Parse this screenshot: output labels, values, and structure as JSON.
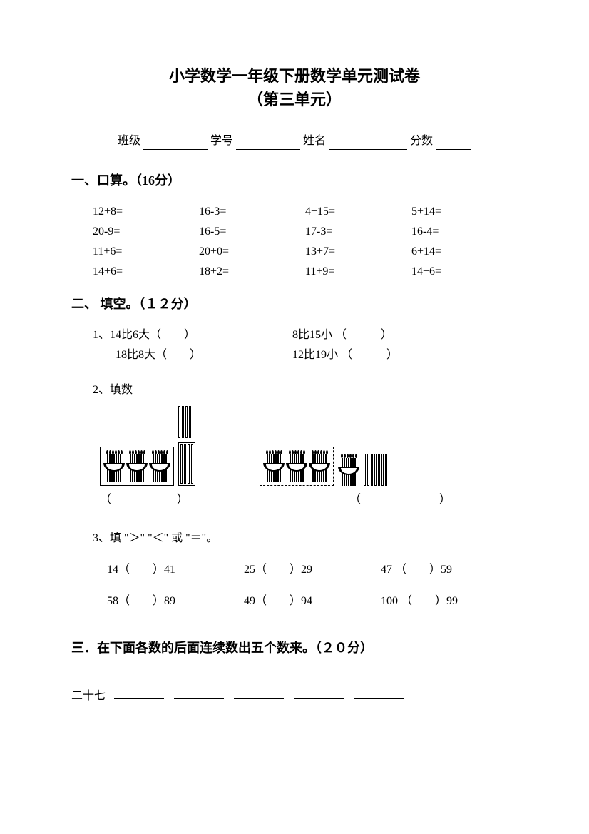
{
  "title": {
    "line1": "小学数学一年级下册数学单元测试卷",
    "line2": "（第三单元）"
  },
  "info": {
    "class_label": "班级",
    "id_label": "学号",
    "name_label": "姓名",
    "score_label": "分数",
    "blank_widths": {
      "class": 90,
      "id": 90,
      "name": 110,
      "score": 50
    }
  },
  "section1": {
    "header": "一、口算。（16分）",
    "rows": [
      [
        "12+8=",
        "16-3=",
        "4+15=",
        "5+14="
      ],
      [
        "20-9=",
        "16-5=",
        "17-3=",
        "16-4="
      ],
      [
        "11+6=",
        "20+0=",
        "13+7=",
        "6+14="
      ],
      [
        "14+6=",
        "18+2=",
        "11+9=",
        "14+6="
      ]
    ]
  },
  "section2": {
    "header": "二、  填空。（１２分）",
    "q1": {
      "label": "1、",
      "left": [
        "14比6大（　　）",
        "18比8大（　　）"
      ],
      "right": [
        "8比15小  （　　　）",
        "12比19小  （　　　）"
      ]
    },
    "q2": {
      "label": "2、填数",
      "left_answer": "（　　　　　）",
      "right_answer": "（　　　　　　）",
      "left_diagram": {
        "bundles": 3,
        "loose_sticks": 4,
        "frame_bundles": true
      },
      "right_diagram": {
        "bundles": 4,
        "loose_sticks": 7,
        "dashed_bundles": 3
      }
    },
    "q3": {
      "label": "3、填 \"＞\" \"＜\" 或 \"＝\"。",
      "rows": [
        [
          "14（　　）41",
          "25（　　）29",
          "47 （　　）59"
        ],
        [
          "58（　　）89",
          "49（　　）94",
          "100 （　　）99"
        ]
      ]
    }
  },
  "section3": {
    "header": "三．在下面各数的后面连续数出五个数来。（２０分）",
    "start": "二十七",
    "blank_count": 5
  },
  "colors": {
    "text": "#000000",
    "bg": "#ffffff"
  }
}
